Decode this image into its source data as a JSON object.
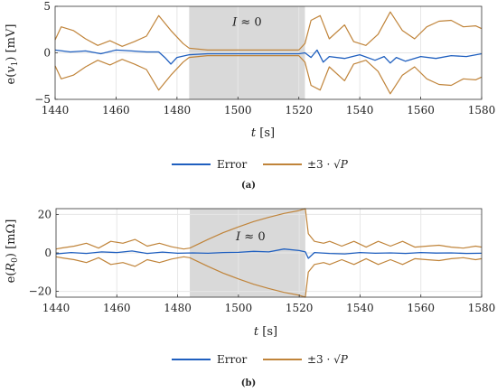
{
  "chart_data": [
    {
      "type": "line",
      "xlabel": "t [s]",
      "ylabel": "e(v1) [mV]",
      "xlim": [
        1440,
        1580
      ],
      "ylim": [
        -5,
        5
      ],
      "xticks": [
        1440,
        1460,
        1480,
        1500,
        1520,
        1540,
        1560,
        1580
      ],
      "yticks": [
        -5,
        0,
        5
      ],
      "grid": true,
      "shaded_interval": [
        1484,
        1522
      ],
      "annotation": {
        "text": "I ≈ 0",
        "x": 1503,
        "y": 2.9
      },
      "legend": {
        "placement": "bottom-outside",
        "entries": [
          "Error",
          "±3 · √P"
        ]
      },
      "caption": "(a)",
      "colors": {
        "error": "#1f5fbf",
        "bound": "#c0843a",
        "shade": "#d9d9d9"
      },
      "series": [
        {
          "name": "Error",
          "x": [
            1440,
            1445,
            1450,
            1455,
            1460,
            1465,
            1470,
            1474,
            1476,
            1478,
            1480,
            1484,
            1490,
            1500,
            1510,
            1520,
            1522,
            1524,
            1526,
            1528,
            1530,
            1535,
            1540,
            1545,
            1548,
            1550,
            1552,
            1555,
            1560,
            1565,
            1570,
            1575,
            1580
          ],
          "values": [
            0.3,
            0.1,
            0.2,
            -0.1,
            0.3,
            0.2,
            0.1,
            0.1,
            -0.5,
            -1.2,
            -0.5,
            -0.2,
            -0.1,
            -0.1,
            -0.1,
            -0.1,
            0.0,
            -0.5,
            0.3,
            -1.0,
            -0.4,
            -0.6,
            -0.2,
            -0.8,
            -0.4,
            -1.1,
            -0.5,
            -0.9,
            -0.4,
            -0.6,
            -0.3,
            -0.4,
            -0.1
          ],
          "color": "#1f5fbf"
        },
        {
          "name": "±3 · √P",
          "x": [
            1440,
            1442,
            1446,
            1450,
            1454,
            1458,
            1462,
            1466,
            1470,
            1474,
            1478,
            1482,
            1484,
            1490,
            1500,
            1510,
            1520,
            1522,
            1524,
            1527,
            1530,
            1535,
            1538,
            1542,
            1546,
            1550,
            1554,
            1558,
            1562,
            1566,
            1570,
            1574,
            1578,
            1580
          ],
          "upper": [
            1.4,
            2.8,
            2.4,
            1.5,
            0.8,
            1.3,
            0.7,
            1.2,
            1.8,
            4.0,
            2.4,
            1.0,
            0.5,
            0.3,
            0.3,
            0.3,
            0.3,
            1.0,
            3.5,
            4.0,
            1.5,
            3.0,
            1.2,
            0.8,
            2.0,
            4.4,
            2.4,
            1.5,
            2.8,
            3.4,
            3.5,
            2.8,
            2.9,
            2.6
          ],
          "lower": [
            -1.4,
            -2.8,
            -2.4,
            -1.5,
            -0.8,
            -1.3,
            -0.7,
            -1.2,
            -1.8,
            -4.0,
            -2.4,
            -1.0,
            -0.5,
            -0.3,
            -0.3,
            -0.3,
            -0.3,
            -1.0,
            -3.5,
            -4.0,
            -1.5,
            -3.0,
            -1.2,
            -0.8,
            -2.0,
            -4.4,
            -2.4,
            -1.5,
            -2.8,
            -3.4,
            -3.5,
            -2.8,
            -2.9,
            -2.6
          ],
          "color": "#c0843a"
        }
      ]
    },
    {
      "type": "line",
      "xlabel": "t [s]",
      "ylabel": "e(R0) [mΩ]",
      "xlim": [
        1440,
        1580
      ],
      "ylim": [
        -23,
        23
      ],
      "xticks": [
        1440,
        1460,
        1480,
        1500,
        1520,
        1540,
        1560,
        1580
      ],
      "yticks": [
        -20,
        0,
        20
      ],
      "grid": true,
      "shaded_interval": [
        1484,
        1522
      ],
      "annotation": {
        "text": "I ≈ 0",
        "x": 1504,
        "y": 6.5
      },
      "legend": {
        "placement": "bottom-outside",
        "entries": [
          "Error",
          "±3 · √P"
        ]
      },
      "caption": "(b)",
      "colors": {
        "error": "#1f5fbf",
        "bound": "#c0843a",
        "shade": "#d9d9d9"
      },
      "series": [
        {
          "name": "Error",
          "x": [
            1440,
            1445,
            1450,
            1455,
            1460,
            1465,
            1470,
            1475,
            1480,
            1485,
            1490,
            1495,
            1500,
            1505,
            1510,
            1515,
            1520,
            1522,
            1523,
            1525,
            1530,
            1535,
            1540,
            1545,
            1550,
            1555,
            1560,
            1565,
            1570,
            1575,
            1580
          ],
          "values": [
            -0.5,
            0.2,
            -0.3,
            0.5,
            0.2,
            1.0,
            -0.3,
            0.4,
            -0.2,
            0.0,
            -0.2,
            0.2,
            0.3,
            0.8,
            0.5,
            2.0,
            1.2,
            0.5,
            -2.8,
            0.2,
            -0.3,
            -0.5,
            0.2,
            -0.2,
            0.0,
            -0.3,
            0.2,
            -0.1,
            0.0,
            -0.3,
            -0.2
          ],
          "color": "#1f5fbf"
        },
        {
          "name": "±3 · √P",
          "x": [
            1440,
            1442,
            1446,
            1450,
            1454,
            1458,
            1462,
            1466,
            1470,
            1474,
            1478,
            1482,
            1484,
            1490,
            1495,
            1500,
            1505,
            1510,
            1515,
            1520,
            1521,
            1522,
            1523,
            1525,
            1528,
            1530,
            1534,
            1538,
            1542,
            1546,
            1550,
            1554,
            1558,
            1562,
            1566,
            1570,
            1574,
            1578,
            1580
          ],
          "upper": [
            2.0,
            2.6,
            3.5,
            5.0,
            2.5,
            6.0,
            5.0,
            7.0,
            3.5,
            5.0,
            3.2,
            2.0,
            2.5,
            7.0,
            10.5,
            13.5,
            16.3,
            18.5,
            20.5,
            22.0,
            22.5,
            23.0,
            10.0,
            6.0,
            5.0,
            6.0,
            3.5,
            6.0,
            3.0,
            6.0,
            3.5,
            6.0,
            3.0,
            3.5,
            4.0,
            3.0,
            2.5,
            3.5,
            3.0
          ],
          "lower": [
            -2.0,
            -2.6,
            -3.5,
            -5.0,
            -2.5,
            -6.0,
            -5.0,
            -7.0,
            -3.5,
            -5.0,
            -3.2,
            -2.0,
            -2.5,
            -7.0,
            -10.5,
            -13.5,
            -16.3,
            -18.5,
            -20.5,
            -22.0,
            -22.5,
            -23.0,
            -10.0,
            -6.0,
            -5.0,
            -6.0,
            -3.5,
            -6.0,
            -3.0,
            -6.0,
            -3.5,
            -6.0,
            -3.0,
            -3.5,
            -4.0,
            -3.0,
            -2.5,
            -3.5,
            -3.0
          ],
          "color": "#c0843a"
        }
      ]
    }
  ]
}
